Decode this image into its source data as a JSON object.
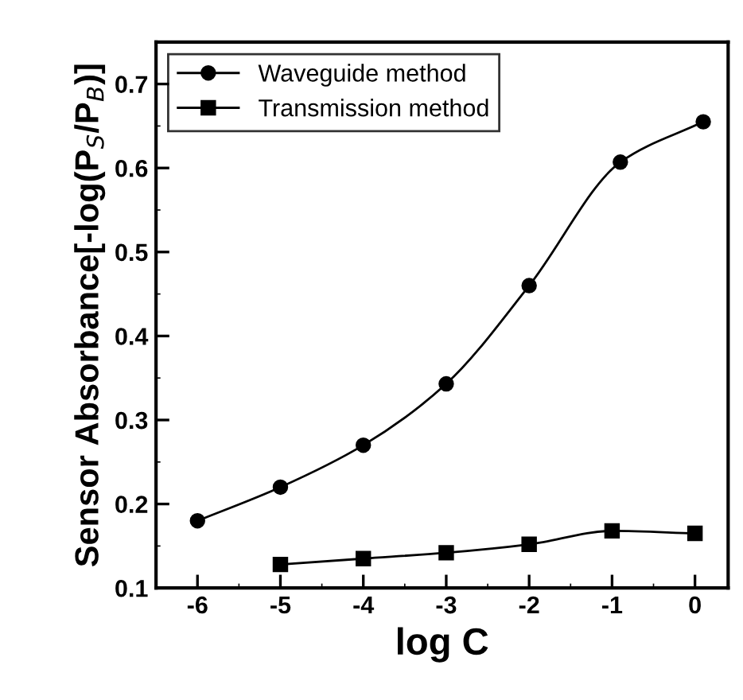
{
  "chart_data": {
    "type": "line",
    "xlabel": "log C",
    "ylabel": "Sensor Absorbance[-log(P$_{S}$/P$_{B}$)]",
    "xlim": [
      -6.5,
      0.4
    ],
    "ylim": [
      0.1,
      0.75
    ],
    "xticks": [
      -6,
      -5,
      -4,
      -3,
      -2,
      -1,
      0
    ],
    "yticks": [
      0.1,
      0.2,
      0.3,
      0.4,
      0.5,
      0.6,
      0.7
    ],
    "grid": false,
    "legend": "top left",
    "line_style": "solid",
    "series": [
      {
        "name": "Waveguide method",
        "color": "#000000",
        "marker": "circle",
        "x": [
          -6,
          -5,
          -4,
          -3,
          -2,
          -0.9,
          0.1
        ],
        "values": [
          0.18,
          0.22,
          0.27,
          0.343,
          0.46,
          0.607,
          0.655
        ]
      },
      {
        "name": "Transmission method",
        "color": "#000000",
        "marker": "square",
        "x": [
          -5,
          -4,
          -3,
          -2,
          -1,
          0
        ],
        "values": [
          0.128,
          0.135,
          0.142,
          0.152,
          0.168,
          0.165
        ]
      }
    ]
  }
}
